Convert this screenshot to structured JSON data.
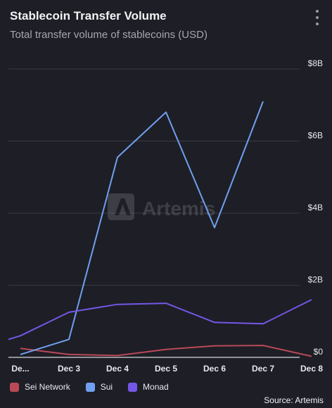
{
  "header": {
    "title": "Stablecoin Transfer Volume",
    "subtitle": "Total transfer volume of stablecoins (USD)"
  },
  "watermark": "Artemis",
  "source": "Source: Artemis",
  "chart_data": {
    "type": "line",
    "x_labels": [
      "De...",
      "Dec 3",
      "Dec 4",
      "Dec 5",
      "Dec 6",
      "Dec 7",
      "Dec 8"
    ],
    "y_ticks": [
      "$0",
      "$2B",
      "$4B",
      "$6B",
      "$8B"
    ],
    "ylim": [
      0,
      8
    ],
    "grid": true,
    "legend_position": "bottom-left",
    "series": [
      {
        "name": "Sei Network",
        "color": "#b84a56",
        "x": [
          0,
          1,
          2,
          3,
          4,
          5,
          6
        ],
        "values": [
          0.25,
          0.08,
          0.05,
          0.22,
          0.32,
          0.33,
          0.03
        ]
      },
      {
        "name": "Sui",
        "color": "#6fa0f0",
        "x": [
          0,
          1,
          2,
          3,
          4,
          5
        ],
        "values": [
          0.08,
          0.5,
          5.55,
          6.8,
          3.6,
          7.1
        ]
      },
      {
        "name": "Monad",
        "color": "#7457e6",
        "x": [
          -0.3,
          0,
          1,
          2,
          3,
          4,
          5,
          6
        ],
        "values": [
          0.5,
          0.6,
          1.25,
          1.47,
          1.5,
          0.97,
          0.93,
          1.6
        ]
      }
    ]
  }
}
